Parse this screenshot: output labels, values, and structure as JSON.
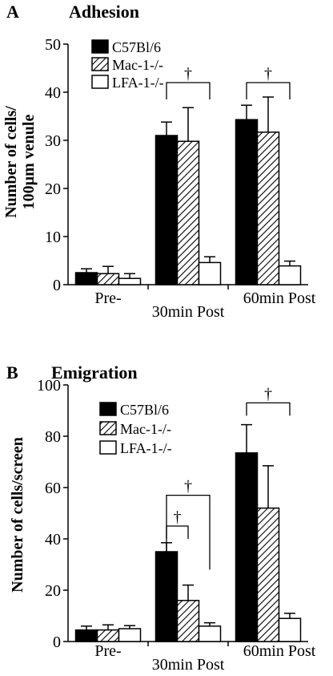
{
  "chart_data": [
    {
      "type": "bar",
      "panel_letter": "A",
      "title": "Adhesion",
      "ylabel_line1": "Number of cells/",
      "ylabel_line2": "100µm venule",
      "ylim": [
        0,
        50
      ],
      "yticks": [
        "0",
        "10",
        "20",
        "30",
        "40",
        "50"
      ],
      "categories": [
        "Pre-",
        "30min Post",
        "60min Post"
      ],
      "series": [
        {
          "name": "C57Bl/6",
          "pattern": "solid",
          "values": [
            2.5,
            31,
            34.3
          ],
          "errors": [
            0.8,
            2.8,
            3.0
          ]
        },
        {
          "name": "Mac-1-/-",
          "pattern": "hatch",
          "values": [
            2.3,
            29.8,
            31.7
          ],
          "errors": [
            1.5,
            7.0,
            7.3
          ]
        },
        {
          "name": "LFA-1-/-",
          "pattern": "open",
          "values": [
            1.3,
            4.6,
            3.9
          ],
          "errors": [
            1.0,
            1.2,
            1.0
          ]
        }
      ],
      "legend_position": "top-left",
      "annotations": [
        {
          "symbol": "†",
          "category": 1,
          "from_series": 0,
          "to_series": 2,
          "level": 42,
          "drop_level": 38.5
        },
        {
          "symbol": "†",
          "category": 2,
          "from_series": 0,
          "to_series": 2,
          "level": 42,
          "drop_level": 38.5
        }
      ]
    },
    {
      "type": "bar",
      "panel_letter": "B",
      "title": "Emigration",
      "ylabel_line1": "Number of cells/screen",
      "ylabel_line2": "",
      "ylim": [
        0,
        100
      ],
      "yticks": [
        "0",
        "20",
        "40",
        "60",
        "80",
        "100"
      ],
      "categories": [
        "Pre-",
        "30min Post",
        "60min Post"
      ],
      "series": [
        {
          "name": "C57Bl/6",
          "pattern": "solid",
          "values": [
            4.5,
            35,
            73.5
          ],
          "errors": [
            1.5,
            3.5,
            11
          ]
        },
        {
          "name": "Mac-1-/-",
          "pattern": "hatch",
          "values": [
            4.5,
            16,
            52
          ],
          "errors": [
            2.0,
            6.0,
            16.5
          ]
        },
        {
          "name": "LFA-1-/-",
          "pattern": "open",
          "values": [
            5,
            6,
            9
          ],
          "errors": [
            1.2,
            1.3,
            2.0
          ]
        }
      ],
      "legend_position": "top-left",
      "annotations": [
        {
          "symbol": "†",
          "category": 1,
          "from_series": 0,
          "to_series": 1,
          "level": 45,
          "drop_level": 40
        },
        {
          "symbol": "†",
          "category": 1,
          "from_series": 0,
          "to_series": 2,
          "level": 57,
          "drop_level": 28
        },
        {
          "symbol": "†",
          "category": 2,
          "from_series": 0,
          "to_series": 2,
          "level": 93,
          "drop_level": 88
        }
      ]
    }
  ]
}
